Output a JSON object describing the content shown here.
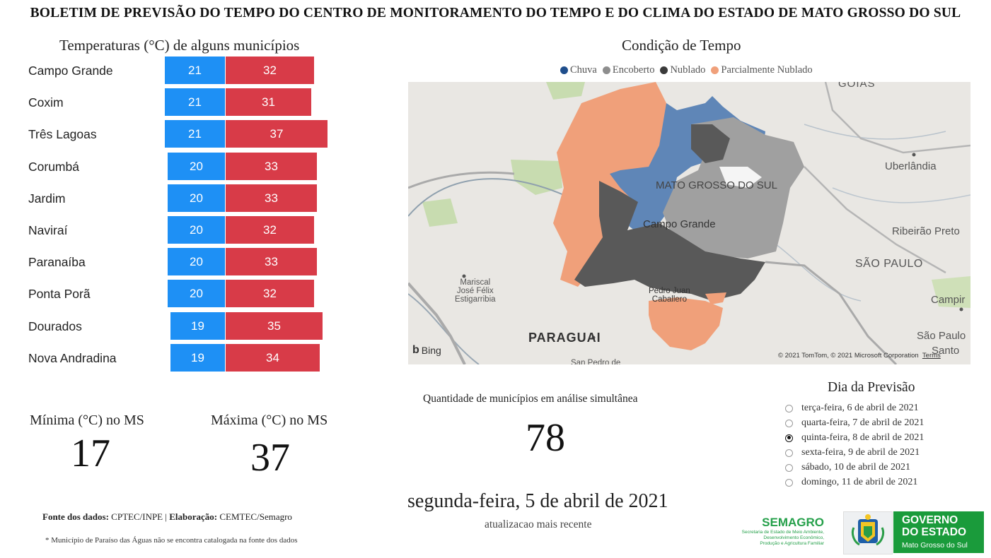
{
  "header": {
    "title": "BOLETIM DE PREVISÃO DO TEMPO DO CENTRO DE MONITORAMENTO DO TEMPO E DO CLIMA DO ESTADO DE MATO GROSSO DO SUL"
  },
  "temperatures": {
    "title": "Temperaturas (°C) de alguns municípios",
    "rows": [
      {
        "city": "Campo Grande",
        "min": "21",
        "max": "32"
      },
      {
        "city": "Coxim",
        "min": "21",
        "max": "31"
      },
      {
        "city": "Três Lagoas",
        "min": "21",
        "max": "37"
      },
      {
        "city": "Corumbá",
        "min": "20",
        "max": "33"
      },
      {
        "city": "Jardim",
        "min": "20",
        "max": "33"
      },
      {
        "city": "Naviraí",
        "min": "20",
        "max": "32"
      },
      {
        "city": "Paranaíba",
        "min": "20",
        "max": "33"
      },
      {
        "city": "Ponta Porã",
        "min": "20",
        "max": "32"
      },
      {
        "city": "Dourados",
        "min": "19",
        "max": "35"
      },
      {
        "city": "Nova Andradina",
        "min": "19",
        "max": "34"
      }
    ],
    "colors": {
      "min": "#1e90f5",
      "max": "#d83b48"
    }
  },
  "stats": {
    "min_label": "Mínima (°C) no MS",
    "min_value": "17",
    "max_label": "Máxima (°C) no MS",
    "max_value": "37"
  },
  "map": {
    "title": "Condição de Tempo",
    "legend": [
      {
        "label": "Chuva",
        "color": "#1f4e8c"
      },
      {
        "label": "Encoberto",
        "color": "#8e8e8e"
      },
      {
        "label": "Nublado",
        "color": "#3a3a3a"
      },
      {
        "label": "Parcialmente Nublado",
        "color": "#f0a07a"
      }
    ],
    "places": {
      "goias": "GOIÁS",
      "uberlandia": "Uberlândia",
      "ms": "MATO GROSSO DO SUL",
      "campo_grande": "Campo Grande",
      "ribeirao": "Ribeirão Preto",
      "sao_paulo": "SÃO PAULO",
      "campinas": "Campir",
      "sao_paulo_city": "São Paulo",
      "santos": "Santo",
      "mariscal_1": "Mariscal",
      "mariscal_2": "José Félix",
      "mariscal_3": "Estigarribia",
      "paraguai": "PARAGUAI",
      "pedro_1": "Pedro Juan",
      "pedro_2": "Caballero",
      "san_pedro": "San Pedro de"
    },
    "bing": "Bing",
    "attribution": "© 2021 TomTom, © 2021 Microsoft Corporation",
    "terms": "Terms"
  },
  "analysis": {
    "label": "Quantidade de municípios em análise simultânea",
    "value": "78"
  },
  "update": {
    "date": "segunda-feira, 5 de abril de 2021",
    "caption": "atualizacao mais recente"
  },
  "forecast": {
    "title": "Dia da Previsão",
    "options": [
      {
        "label": "terça-feira, 6 de abril de 2021",
        "checked": false
      },
      {
        "label": "quarta-feira, 7 de abril de 2021",
        "checked": false
      },
      {
        "label": "quinta-feira, 8 de abril de 2021",
        "checked": true
      },
      {
        "label": "sexta-feira, 9 de abril de 2021",
        "checked": false
      },
      {
        "label": "sábado, 10 de abril de 2021",
        "checked": false
      },
      {
        "label": "domingo, 11 de abril de 2021",
        "checked": false
      }
    ]
  },
  "footer": {
    "source_bold": "Fonte dos dados:",
    "source_text": " CPTEC/INPE | ",
    "elab_bold": "Elaboração:",
    "elab_text": " CEMTEC/Semagro",
    "note": "* Município de Paraíso das Águas não se encontra catalogada na fonte dos dados"
  },
  "logos": {
    "semagro_name": "SEMAGRO",
    "semagro_line1": "Secretaria de Estado de Meio Ambiente,",
    "semagro_line2": "Desenvolvimento Econômico,",
    "semagro_line3": "Produção e Agricultura Familiar",
    "gov_line1": "GOVERNO",
    "gov_line2": "DO ESTADO",
    "gov_line3": "Mato Grosso do Sul"
  }
}
